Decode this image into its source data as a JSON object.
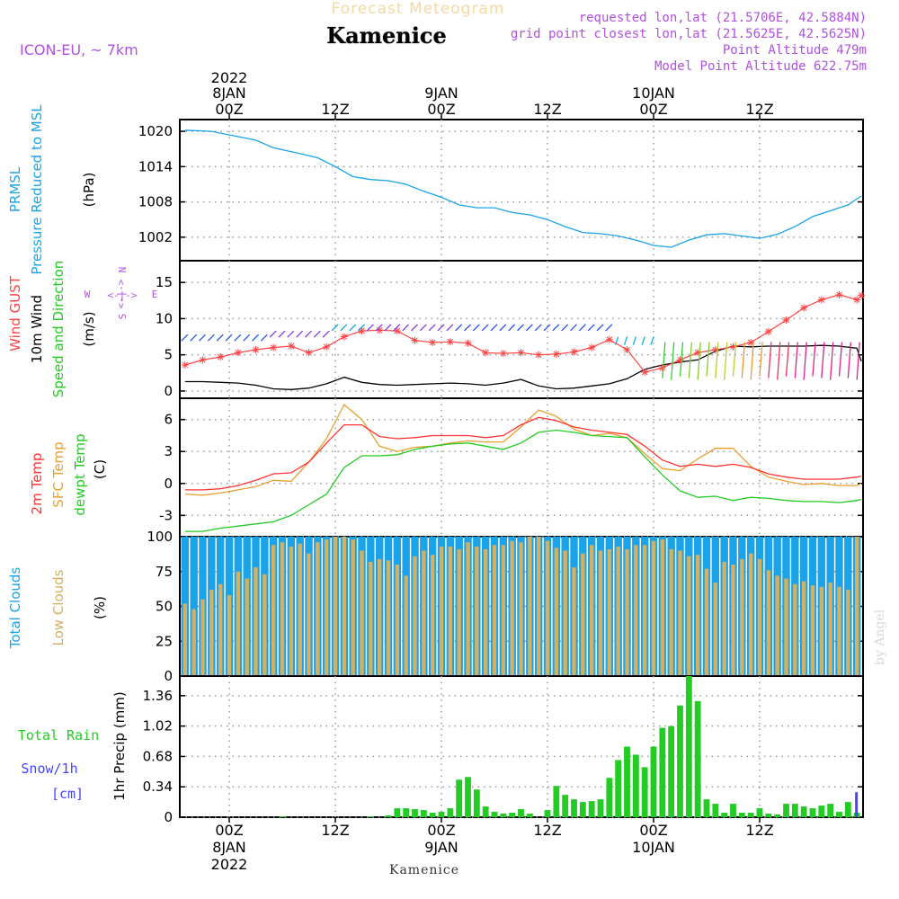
{
  "header": {
    "product": "Forecast Meteogram",
    "location": "Kamenice",
    "model": "ICON-EU, ~ 7km",
    "requested": "requested lon,lat (21.5706E, 42.5884N)",
    "grid_point": "grid point closest lon,lat (21.5625E, 42.5625N)",
    "point_altitude": "Point Altitude 479m",
    "model_altitude": "Model Point Altitude 622.75m",
    "footer_location": "Kamenice",
    "watermark": "by Angel"
  },
  "colors": {
    "pressure": "#1aa3e8",
    "gust": "#ff4444",
    "wind": "#000000",
    "temp2m": "#ff3333",
    "sfc": "#e8a030",
    "dewpt": "#22cc22",
    "total_clouds": "#1aa3e8",
    "low_clouds": "#d6b060",
    "rain": "#22cc22",
    "snow": "#4444ff",
    "compass": "#b050e0"
  },
  "time_axis": {
    "top_year": "2022",
    "ticks": [
      {
        "hour": 0,
        "label": "00Z",
        "date": "8JAN"
      },
      {
        "hour": 12,
        "label": "12Z",
        "date": ""
      },
      {
        "hour": 24,
        "label": "00Z",
        "date": "9JAN"
      },
      {
        "hour": 36,
        "label": "12Z",
        "date": ""
      },
      {
        "hour": 48,
        "label": "00Z",
        "date": "10JAN"
      },
      {
        "hour": 60,
        "label": "12Z",
        "date": ""
      }
    ],
    "bottom_year": "2022"
  },
  "chart_data": [
    {
      "type": "line",
      "panel": "pressure",
      "ylabel_lines": [
        "PRMSL",
        "Pressure Reduced to MSL"
      ],
      "unit": "(hPa)",
      "ylim": [
        998,
        1022
      ],
      "yticks": [
        1002,
        1008,
        1014,
        1020
      ],
      "x": [
        -5,
        -2,
        0,
        3,
        5,
        8,
        10,
        12,
        14,
        16,
        18,
        20,
        22,
        24,
        26,
        28,
        30,
        32,
        34,
        36,
        38,
        40,
        42,
        44,
        46,
        48,
        50,
        52,
        54,
        56,
        58,
        60,
        62,
        64,
        66,
        68,
        70,
        71.5
      ],
      "series": [
        {
          "values": [
            1020.2,
            1020,
            1019.4,
            1018.5,
            1017.2,
            1016.2,
            1015.5,
            1014,
            1012.3,
            1011.8,
            1011.6,
            1011,
            1009.8,
            1008.8,
            1007.5,
            1007,
            1007,
            1006.2,
            1005.8,
            1005,
            1003.8,
            1002.8,
            1002.6,
            1002.2,
            1001.5,
            1000.6,
            1000.3,
            1001.5,
            1002.4,
            1002.6,
            1002.2,
            1001.8,
            1002.5,
            1003.8,
            1005.5,
            1006.5,
            1007.5,
            1009
          ]
        }
      ]
    },
    {
      "type": "line",
      "panel": "wind",
      "ylabel_lines": [
        "Wind GUST",
        "10m Wind",
        "Speed and Direction"
      ],
      "unit": "(m/s)",
      "compass": {
        "n": "N",
        "s": "S",
        "w": "W",
        "e": "E"
      },
      "ylim": [
        -1,
        18
      ],
      "yticks": [
        0,
        5,
        10,
        15
      ],
      "x": [
        -5,
        -3,
        -1,
        1,
        3,
        5,
        7,
        9,
        11,
        13,
        15,
        17,
        19,
        21,
        23,
        25,
        27,
        29,
        31,
        33,
        35,
        37,
        39,
        41,
        43,
        45,
        47,
        49,
        51,
        53,
        55,
        57,
        59,
        61,
        63,
        65,
        67,
        69,
        71,
        71.5
      ],
      "series": [
        {
          "name": "Wind GUST",
          "values": [
            3.6,
            4.3,
            4.7,
            5.3,
            5.7,
            6,
            6.2,
            5.3,
            6.1,
            7.5,
            8.3,
            8.4,
            8.3,
            7,
            6.7,
            6.8,
            6.6,
            5.3,
            5.2,
            5.3,
            5,
            5.1,
            5.4,
            6,
            7.1,
            5.7,
            2.6,
            3.2,
            4.3,
            5.3,
            5.7,
            6.1,
            6.7,
            8.2,
            9.8,
            11.5,
            12.6,
            13.3,
            12.6,
            13.2
          ]
        },
        {
          "name": "10m Wind",
          "values": [
            1.3,
            1.3,
            1.2,
            1.1,
            0.8,
            0.3,
            0.2,
            0.4,
            1,
            1.9,
            1.2,
            0.9,
            0.8,
            0.9,
            1,
            1.1,
            1,
            0.8,
            1.1,
            1.6,
            0.7,
            0.3,
            0.4,
            0.7,
            1,
            1.7,
            3,
            3.6,
            4,
            4.3,
            5.5,
            6.2,
            6.1,
            6.2,
            6.2,
            6.2,
            6.3,
            6.2,
            5.9,
            4.1
          ]
        }
      ]
    },
    {
      "type": "line",
      "panel": "temperature",
      "ylabel_lines": [
        "2m Temp",
        "SFC Temp",
        "dewpt Temp"
      ],
      "unit": "(C)",
      "ylim": [
        -5,
        8
      ],
      "yticks": [
        -3,
        0,
        3,
        6
      ],
      "x": [
        -5,
        -3,
        -1,
        1,
        3,
        5,
        7,
        9,
        11,
        13,
        15,
        17,
        19,
        21,
        23,
        25,
        27,
        29,
        31,
        33,
        35,
        37,
        39,
        41,
        43,
        45,
        47,
        49,
        51,
        53,
        55,
        57,
        59,
        61,
        63,
        65,
        67,
        69,
        71,
        71.5
      ],
      "series": [
        {
          "name": "2m Temp",
          "values": [
            -0.6,
            -0.6,
            -0.5,
            -0.2,
            0.3,
            0.9,
            1,
            2,
            3.8,
            5.5,
            5.5,
            4.4,
            4.2,
            4.3,
            4.5,
            4.5,
            4.5,
            4.3,
            4.5,
            5.5,
            6.2,
            5.9,
            5.3,
            5,
            4.8,
            4.6,
            3.5,
            2.2,
            1.6,
            1.8,
            1.6,
            1.8,
            1.5,
            0.9,
            0.6,
            0.4,
            0.4,
            0.4,
            0.6,
            0.7
          ]
        },
        {
          "name": "SFC Temp",
          "values": [
            -1,
            -1.1,
            -0.9,
            -0.6,
            -0.3,
            0.3,
            0.2,
            2,
            4.2,
            7.4,
            6,
            3.5,
            3,
            3.4,
            3.5,
            3.8,
            4,
            3.9,
            3.9,
            5.3,
            6.9,
            6.3,
            5.1,
            4.5,
            4.7,
            4.3,
            2.8,
            1.4,
            1.2,
            2.3,
            3.3,
            3.3,
            1.6,
            0.6,
            0.2,
            -0.1,
            0,
            -0.2,
            -0.2,
            0
          ]
        },
        {
          "name": "dewpt Temp",
          "values": [
            -4.5,
            -4.5,
            -4.2,
            -4,
            -3.8,
            -3.6,
            -3,
            -2,
            -1,
            1.5,
            2.6,
            2.6,
            2.7,
            3.2,
            3.5,
            3.7,
            3.8,
            3.5,
            3.2,
            3.8,
            4.8,
            5,
            4.8,
            4.5,
            4.4,
            4.3,
            2.5,
            0.8,
            -0.7,
            -1.3,
            -1.2,
            -1.6,
            -1.3,
            -1.4,
            -1.6,
            -1.7,
            -1.7,
            -1.8,
            -1.6,
            -1.5
          ]
        }
      ]
    },
    {
      "type": "bar",
      "panel": "clouds",
      "ylabel_lines": [
        "Total Clouds",
        "Low Clouds"
      ],
      "unit": "(%)",
      "ylim": [
        0,
        100
      ],
      "yticks": [
        0,
        25,
        50,
        75,
        100
      ],
      "x_start": -5,
      "x_step": 1,
      "series": [
        {
          "name": "Total Clouds",
          "values": [
            100,
            100,
            100,
            100,
            100,
            100,
            100,
            100,
            100,
            100,
            100,
            100,
            100,
            100,
            100,
            100,
            100,
            100,
            100,
            100,
            100,
            100,
            100,
            100,
            100,
            100,
            100,
            100,
            100,
            100,
            100,
            100,
            100,
            100,
            100,
            100,
            100,
            100,
            100,
            100,
            100,
            100,
            100,
            100,
            100,
            100,
            100,
            100,
            100,
            100,
            100,
            100,
            100,
            100,
            100,
            100,
            100,
            100,
            100,
            100,
            100,
            100,
            100,
            100,
            100,
            100,
            100,
            100,
            100,
            100,
            100,
            100,
            100,
            100,
            100,
            100,
            100
          ]
        },
        {
          "name": "Low Clouds",
          "values": [
            52,
            48,
            55,
            62,
            66,
            58,
            75,
            70,
            78,
            73,
            94,
            96,
            93,
            95,
            88,
            96,
            98,
            100,
            100,
            98,
            90,
            82,
            84,
            83,
            80,
            72,
            86,
            90,
            87,
            93,
            93,
            91,
            96,
            93,
            91,
            94,
            94,
            97,
            96,
            100,
            100,
            97,
            92,
            90,
            78,
            88,
            94,
            90,
            91,
            93,
            91,
            94,
            94,
            97,
            98,
            91,
            90,
            86,
            87,
            77,
            67,
            82,
            80,
            84,
            88,
            84,
            76,
            72,
            70,
            66,
            68,
            65,
            64,
            67,
            64,
            62,
            100
          ]
        }
      ]
    },
    {
      "type": "bar",
      "panel": "precip",
      "ylabel_lines": [
        "Total Rain",
        "Snow/1h",
        "[cm]"
      ],
      "unit": "1hr Precip (mm)",
      "ylim": [
        0,
        1.58
      ],
      "yticks": [
        0,
        0.34,
        0.68,
        1.02,
        1.36
      ],
      "x_start": -5,
      "x_step": 1,
      "series": [
        {
          "name": "Total Rain",
          "values": [
            0,
            0,
            0,
            0,
            0,
            0,
            0,
            0,
            0,
            0,
            0,
            0.01,
            0,
            0,
            0,
            0,
            0,
            0,
            0,
            0,
            0,
            0.01,
            0,
            0.02,
            0.1,
            0.1,
            0.09,
            0.08,
            0.05,
            0.06,
            0.1,
            0.42,
            0.45,
            0.31,
            0.12,
            0.06,
            0.04,
            0.05,
            0.09,
            0.04,
            0,
            0.08,
            0.35,
            0.25,
            0.2,
            0.17,
            0.18,
            0.2,
            0.44,
            0.64,
            0.79,
            0.7,
            0.56,
            0.79,
            1,
            1.02,
            1.25,
            1.58,
            1.3,
            0.2,
            0.15,
            0.05,
            0.15,
            0.05,
            0.05,
            0.1,
            0.04,
            0.03,
            0.15,
            0.15,
            0.12,
            0.1,
            0.13,
            0.15,
            0.06,
            0.17,
            0.05
          ]
        },
        {
          "name": "Snow/1h",
          "values": [
            0,
            0,
            0,
            0,
            0,
            0,
            0,
            0,
            0,
            0,
            0,
            0,
            0,
            0,
            0,
            0,
            0,
            0,
            0,
            0,
            0,
            0,
            0,
            0,
            0,
            0,
            0,
            0,
            0,
            0,
            0,
            0,
            0,
            0,
            0,
            0,
            0,
            0,
            0,
            0,
            0,
            0,
            0,
            0,
            0,
            0,
            0,
            0,
            0,
            0,
            0,
            0,
            0,
            0,
            0,
            0,
            0,
            0,
            0,
            0,
            0,
            0,
            0,
            0,
            0,
            0,
            0,
            0,
            0,
            0,
            0,
            0,
            0,
            0,
            0,
            0,
            0.28
          ]
        }
      ]
    }
  ]
}
